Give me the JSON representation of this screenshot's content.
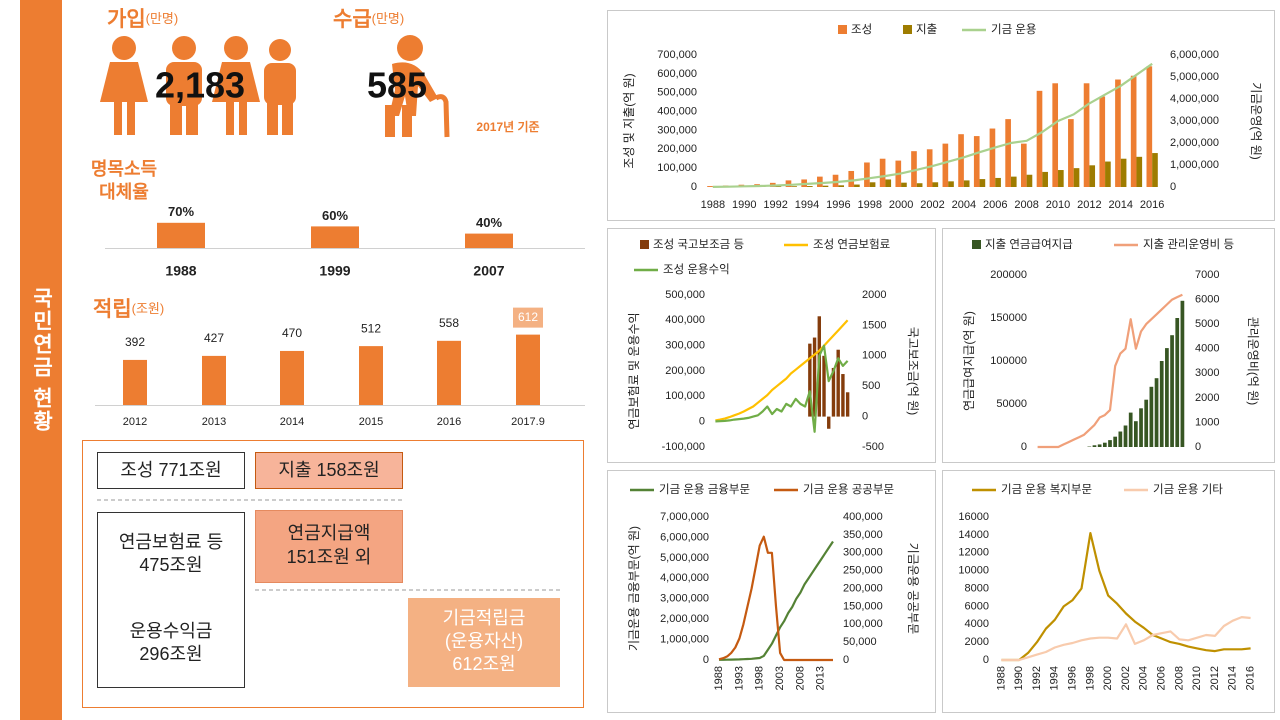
{
  "sidebar_title": "국민연금 현황",
  "subscribers": {
    "label": "가입",
    "unit": "(만명)",
    "value": "2,183"
  },
  "recipients": {
    "label": "수급",
    "unit": "(만명)",
    "value": "585"
  },
  "basis": "2017년 기준",
  "flow": {
    "inflow": "조성 771조원",
    "outflow": "지출 158조원",
    "contributions": [
      "연금보험료 등",
      "475조원"
    ],
    "payments": [
      "연금지급액",
      "151조원 외"
    ],
    "returns": [
      "운용수익금",
      "296조원"
    ],
    "reserve": [
      "기금적립금",
      "(운용자산)",
      "612조원"
    ]
  },
  "chart_data": [
    {
      "type": "bar",
      "title": [
        "명목소득",
        "대체율"
      ],
      "categories": [
        "1988",
        "1999",
        "2007"
      ],
      "values": [
        70,
        60,
        40
      ],
      "value_labels": [
        "70%",
        "60%",
        "40%"
      ],
      "color": "#ed7d31"
    },
    {
      "type": "bar",
      "title": "적립",
      "subtitle": "(조원)",
      "categories": [
        "2012",
        "2013",
        "2014",
        "2015",
        "2016",
        "2017.9"
      ],
      "values": [
        392,
        427,
        470,
        512,
        558,
        612
      ],
      "color": "#ed7d31"
    },
    {
      "type": "combo",
      "legend": "top",
      "ylabel": "조성 및 지출(억 원)",
      "y2label": "기금운영(억 원)",
      "categories": [
        "1988",
        null,
        "1990",
        null,
        "1992",
        null,
        "1994",
        null,
        "1996",
        null,
        "1998",
        null,
        "2000",
        null,
        "2002",
        null,
        "2004",
        null,
        "2006",
        null,
        "2008",
        null,
        "2010",
        null,
        "2012",
        null,
        "2014",
        null,
        "2016"
      ],
      "ylim": [
        0,
        700000
      ],
      "yticks": [
        0,
        {
          "value": 100000,
          "label": "100,000"
        },
        {
          "value": 200000,
          "label": "200,000"
        },
        {
          "value": 300000,
          "label": "300,000"
        },
        {
          "value": 400000,
          "label": "400,000"
        },
        {
          "value": 500000,
          "label": "500,000"
        },
        {
          "value": 600000,
          "label": "600,000"
        },
        {
          "value": 700000,
          "label": "700,000"
        }
      ],
      "y2lim": [
        0,
        6000000
      ],
      "y2ticks": [
        0,
        {
          "value": 1000000,
          "label": "1,000,000"
        },
        {
          "value": 2000000,
          "label": "2,000,000"
        },
        {
          "value": 3000000,
          "label": "3,000,000"
        },
        {
          "value": 4000000,
          "label": "4,000,000"
        },
        {
          "value": 5000000,
          "label": "5,000,000"
        },
        {
          "value": 6000000,
          "label": "6,000,000"
        }
      ],
      "series": [
        {
          "name": "조성",
          "type": "bar",
          "color": "#ed7d31",
          "values": [
            5000,
            8000,
            12000,
            15000,
            22000,
            35000,
            40000,
            55000,
            65000,
            85000,
            130000,
            150000,
            140000,
            190000,
            200000,
            230000,
            280000,
            270000,
            310000,
            360000,
            230000,
            510000,
            550000,
            360000,
            550000,
            480000,
            570000,
            590000,
            640000
          ]
        },
        {
          "name": "지출",
          "type": "bar",
          "color": "#9e7c00",
          "values": [
            100,
            500,
            1000,
            2000,
            3000,
            4000,
            5000,
            7000,
            9000,
            13000,
            25000,
            40000,
            23000,
            20000,
            25000,
            30000,
            35000,
            42000,
            48000,
            55000,
            65000,
            80000,
            90000,
            100000,
            115000,
            135000,
            150000,
            160000,
            180000
          ]
        },
        {
          "name": "기금 운용",
          "type": "line",
          "axis": "y2",
          "color": "#a9d18e",
          "values": [
            5000,
            14000,
            30000,
            45000,
            70000,
            100000,
            140000,
            180000,
            230000,
            300000,
            400000,
            500000,
            620000,
            780000,
            950000,
            1150000,
            1350000,
            1580000,
            1800000,
            2000000,
            2100000,
            2500000,
            3000000,
            3300000,
            3800000,
            4200000,
            4600000,
            5100000,
            5600000
          ]
        }
      ]
    },
    {
      "type": "combo",
      "legend": "top",
      "ylabel": "연금보험료 및 운용수익",
      "y2label": "국고보조금(억 원)",
      "ylim": [
        -100000,
        500000
      ],
      "yticks": [
        {
          "value": -100000,
          "label": "-100,000"
        },
        0,
        {
          "value": 100000,
          "label": "100,000"
        },
        {
          "value": 200000,
          "label": "200,000"
        },
        {
          "value": 300000,
          "label": "300,000"
        },
        {
          "value": 400000,
          "label": "400,000"
        },
        {
          "value": 500000,
          "label": "500,000"
        }
      ],
      "y2lim": [
        -500,
        2000
      ],
      "y2ticks": [
        -500,
        0,
        500,
        1000,
        1500,
        2000
      ],
      "series": [
        {
          "name": "조성 국고보조금 등",
          "type": "bar",
          "axis": "y2",
          "color": "#843c0c",
          "values": [
            0,
            0,
            0,
            0,
            0,
            0,
            0,
            0,
            0,
            0,
            0,
            0,
            0,
            0,
            0,
            0,
            0,
            0,
            0,
            0,
            1200,
            1300,
            1650,
            1000,
            -200,
            800,
            1100,
            700,
            400
          ]
        },
        {
          "name": "조성 연금보험료",
          "type": "line",
          "color": "#ffc000",
          "values": [
            5000,
            8000,
            12000,
            18000,
            25000,
            32000,
            40000,
            50000,
            60000,
            75000,
            90000,
            105000,
            125000,
            140000,
            155000,
            170000,
            190000,
            205000,
            220000,
            235000,
            250000,
            265000,
            280000,
            300000,
            320000,
            340000,
            360000,
            380000,
            400000
          ]
        },
        {
          "name": "조성 운용수익",
          "type": "line",
          "color": "#70ad47",
          "values": [
            1000,
            2000,
            3000,
            5000,
            8000,
            10000,
            12000,
            15000,
            20000,
            25000,
            40000,
            60000,
            30000,
            50000,
            40000,
            70000,
            60000,
            90000,
            70000,
            60000,
            120000,
            -40000,
            260000,
            300000,
            160000,
            200000,
            250000,
            220000,
            240000
          ]
        }
      ]
    },
    {
      "type": "combo",
      "legend": "top",
      "ylabel": "연금급여지급(억 원)",
      "y2label": "관리운영비(억 원)",
      "ylim": [
        0,
        200000
      ],
      "yticks": [
        0,
        50000,
        100000,
        150000,
        200000
      ],
      "y2lim": [
        0,
        7000
      ],
      "y2ticks": [
        0,
        1000,
        2000,
        3000,
        4000,
        5000,
        6000,
        7000
      ],
      "series": [
        {
          "name": "지출 연금급여지급",
          "type": "bar",
          "color": "#375623",
          "values": [
            0,
            0,
            0,
            0,
            0,
            0,
            0,
            0,
            0,
            0,
            500,
            2000,
            3000,
            5000,
            8000,
            12000,
            18000,
            25000,
            40000,
            30000,
            45000,
            55000,
            70000,
            80000,
            100000,
            115000,
            130000,
            150000,
            170000
          ]
        },
        {
          "name": "지출 관리운영비 등",
          "type": "line",
          "axis": "y2",
          "color": "#f0a07a",
          "values": [
            0,
            0,
            0,
            0,
            0,
            100,
            200,
            300,
            400,
            500,
            700,
            900,
            1200,
            1300,
            1500,
            3300,
            3800,
            4000,
            5200,
            4000,
            4700,
            5000,
            5200,
            5400,
            5600,
            5800,
            6000,
            6100,
            6200
          ]
        }
      ]
    },
    {
      "type": "line",
      "legend": "top",
      "ylabel": "기금운용 금융부문(억 원)",
      "y2label": "기금운용 공공부문",
      "categories": [
        "1988",
        null,
        null,
        null,
        null,
        "1993",
        null,
        null,
        null,
        null,
        "1998",
        null,
        null,
        null,
        null,
        "2003",
        null,
        null,
        null,
        null,
        "2008",
        null,
        null,
        null,
        null,
        "2013",
        null,
        null,
        null
      ],
      "ylim": [
        0,
        7000000
      ],
      "yticks": [
        0,
        {
          "value": 1000000,
          "label": "1,000,000"
        },
        {
          "value": 2000000,
          "label": "2,000,000"
        },
        {
          "value": 3000000,
          "label": "3,000,000"
        },
        {
          "value": 4000000,
          "label": "4,000,000"
        },
        {
          "value": 5000000,
          "label": "5,000,000"
        },
        {
          "value": 6000000,
          "label": "6,000,000"
        },
        {
          "value": 7000000,
          "label": "7,000,000"
        }
      ],
      "y2lim": [
        0,
        400000
      ],
      "y2ticks": [
        0,
        {
          "value": 50000,
          "label": "50,000"
        },
        {
          "value": 100000,
          "label": "100,000"
        },
        {
          "value": 150000,
          "label": "150,000"
        },
        {
          "value": 200000,
          "label": "200,000"
        },
        {
          "value": 250000,
          "label": "250,000"
        },
        {
          "value": 300000,
          "label": "300,000"
        },
        {
          "value": 350000,
          "label": "350,000"
        },
        {
          "value": 400000,
          "label": "400,000"
        }
      ],
      "series": [
        {
          "name": "기금 운용 금융부문",
          "color": "#548235",
          "values": [
            10000,
            12000,
            15000,
            20000,
            25000,
            30000,
            40000,
            50000,
            60000,
            80000,
            100000,
            200000,
            500000,
            800000,
            1200000,
            1600000,
            1900000,
            2300000,
            2600000,
            3000000,
            3300000,
            3700000,
            4000000,
            4300000,
            4600000,
            4900000,
            5200000,
            5500000,
            5800000
          ]
        },
        {
          "name": "기금 운용 공공부문",
          "axis": "y2",
          "color": "#c55a11",
          "values": [
            2000,
            5000,
            10000,
            20000,
            35000,
            60000,
            100000,
            150000,
            200000,
            260000,
            320000,
            345000,
            300000,
            300000,
            150000,
            20000,
            0,
            0,
            0,
            0,
            0,
            0,
            0,
            0,
            0,
            0,
            0,
            0,
            0
          ]
        }
      ]
    },
    {
      "type": "line",
      "legend": "top",
      "categories": [
        "1988",
        null,
        "1990",
        null,
        "1992",
        null,
        "1994",
        null,
        "1996",
        null,
        "1998",
        null,
        "2000",
        null,
        "2002",
        null,
        "2004",
        null,
        "2006",
        null,
        "2008",
        null,
        "2010",
        null,
        "2012",
        null,
        "2014",
        null,
        "2016"
      ],
      "ylim": [
        0,
        16000
      ],
      "yticks": [
        0,
        2000,
        4000,
        6000,
        8000,
        10000,
        12000,
        14000,
        16000
      ],
      "series": [
        {
          "name": "기금 운용 복지부문",
          "color": "#bf9000",
          "values": [
            0,
            0,
            0,
            800,
            2000,
            3500,
            4500,
            6000,
            6700,
            8000,
            14200,
            10000,
            7200,
            6300,
            5200,
            4300,
            3600,
            2800,
            2400,
            2000,
            1800,
            1500,
            1300,
            1100,
            1000,
            1200,
            1200,
            1200,
            1300
          ]
        },
        {
          "name": "기금 운용 기타",
          "color": "#f8cbad",
          "values": [
            0,
            0,
            0,
            300,
            600,
            900,
            1400,
            1700,
            1900,
            2200,
            2400,
            2500,
            2500,
            2400,
            4000,
            1800,
            2200,
            2800,
            3000,
            3200,
            2300,
            2200,
            2500,
            2800,
            2700,
            3800,
            4400,
            4800,
            4700
          ]
        }
      ]
    }
  ]
}
